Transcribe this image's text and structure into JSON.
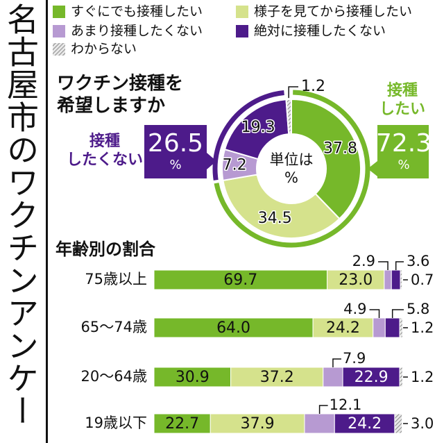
{
  "vertical_title": "名古屋市のワクチンアンケート",
  "colors": {
    "now": "#76b82a",
    "wait": "#d5e28c",
    "reluctant": "#b79ad2",
    "never": "#4d1b8a",
    "unknown": "#b3b3b3"
  },
  "chart_data": [
    {
      "type": "pie",
      "title": "ワクチン接種を希望しますか",
      "center_label": "単位は%",
      "slices": [
        {
          "name": "すぐにでも接種したい",
          "value": 37.8,
          "label": "37.8"
        },
        {
          "name": "様子を見てから接種したい",
          "value": 34.5,
          "label": "34.5"
        },
        {
          "name": "あまり接種したくない",
          "value": 7.2,
          "label": "7.2"
        },
        {
          "name": "絶対に接種したくない",
          "value": 19.3,
          "label": "19.3"
        },
        {
          "name": "わからない",
          "value": 1.2,
          "label": "1.2"
        }
      ],
      "groups": [
        {
          "name": "接種したい",
          "value": "72.3",
          "unit": "%"
        },
        {
          "name": "接種したくない",
          "value": "26.5",
          "unit": "%"
        }
      ]
    },
    {
      "type": "bar",
      "stacked": true,
      "orientation": "horizontal",
      "title": "年齢別の割合",
      "categories": [
        "75歳以上",
        "65〜74歳",
        "20〜64歳",
        "19歳以下"
      ],
      "series": [
        {
          "name": "すぐにでも接種したい",
          "values": [
            69.7,
            64.0,
            30.9,
            22.7
          ]
        },
        {
          "name": "様子を見てから接種したい",
          "values": [
            23.0,
            24.2,
            37.2,
            37.9
          ]
        },
        {
          "name": "あまり接種したくない",
          "values": [
            2.9,
            4.9,
            7.9,
            12.1
          ]
        },
        {
          "name": "絶対に接種したくない",
          "values": [
            3.6,
            5.8,
            22.9,
            24.2
          ]
        },
        {
          "name": "わからない",
          "values": [
            0.7,
            1.2,
            1.2,
            3.0
          ]
        }
      ],
      "value_labels": [
        [
          "69.7",
          "23.0",
          "2.9",
          "3.6",
          "0.7"
        ],
        [
          "64.0",
          "24.2",
          "4.9",
          "5.8",
          "1.2"
        ],
        [
          "30.9",
          "37.2",
          "7.9",
          "22.9",
          "1.2"
        ],
        [
          "22.7",
          "37.9",
          "12.1",
          "24.2",
          "3.0"
        ]
      ]
    }
  ]
}
